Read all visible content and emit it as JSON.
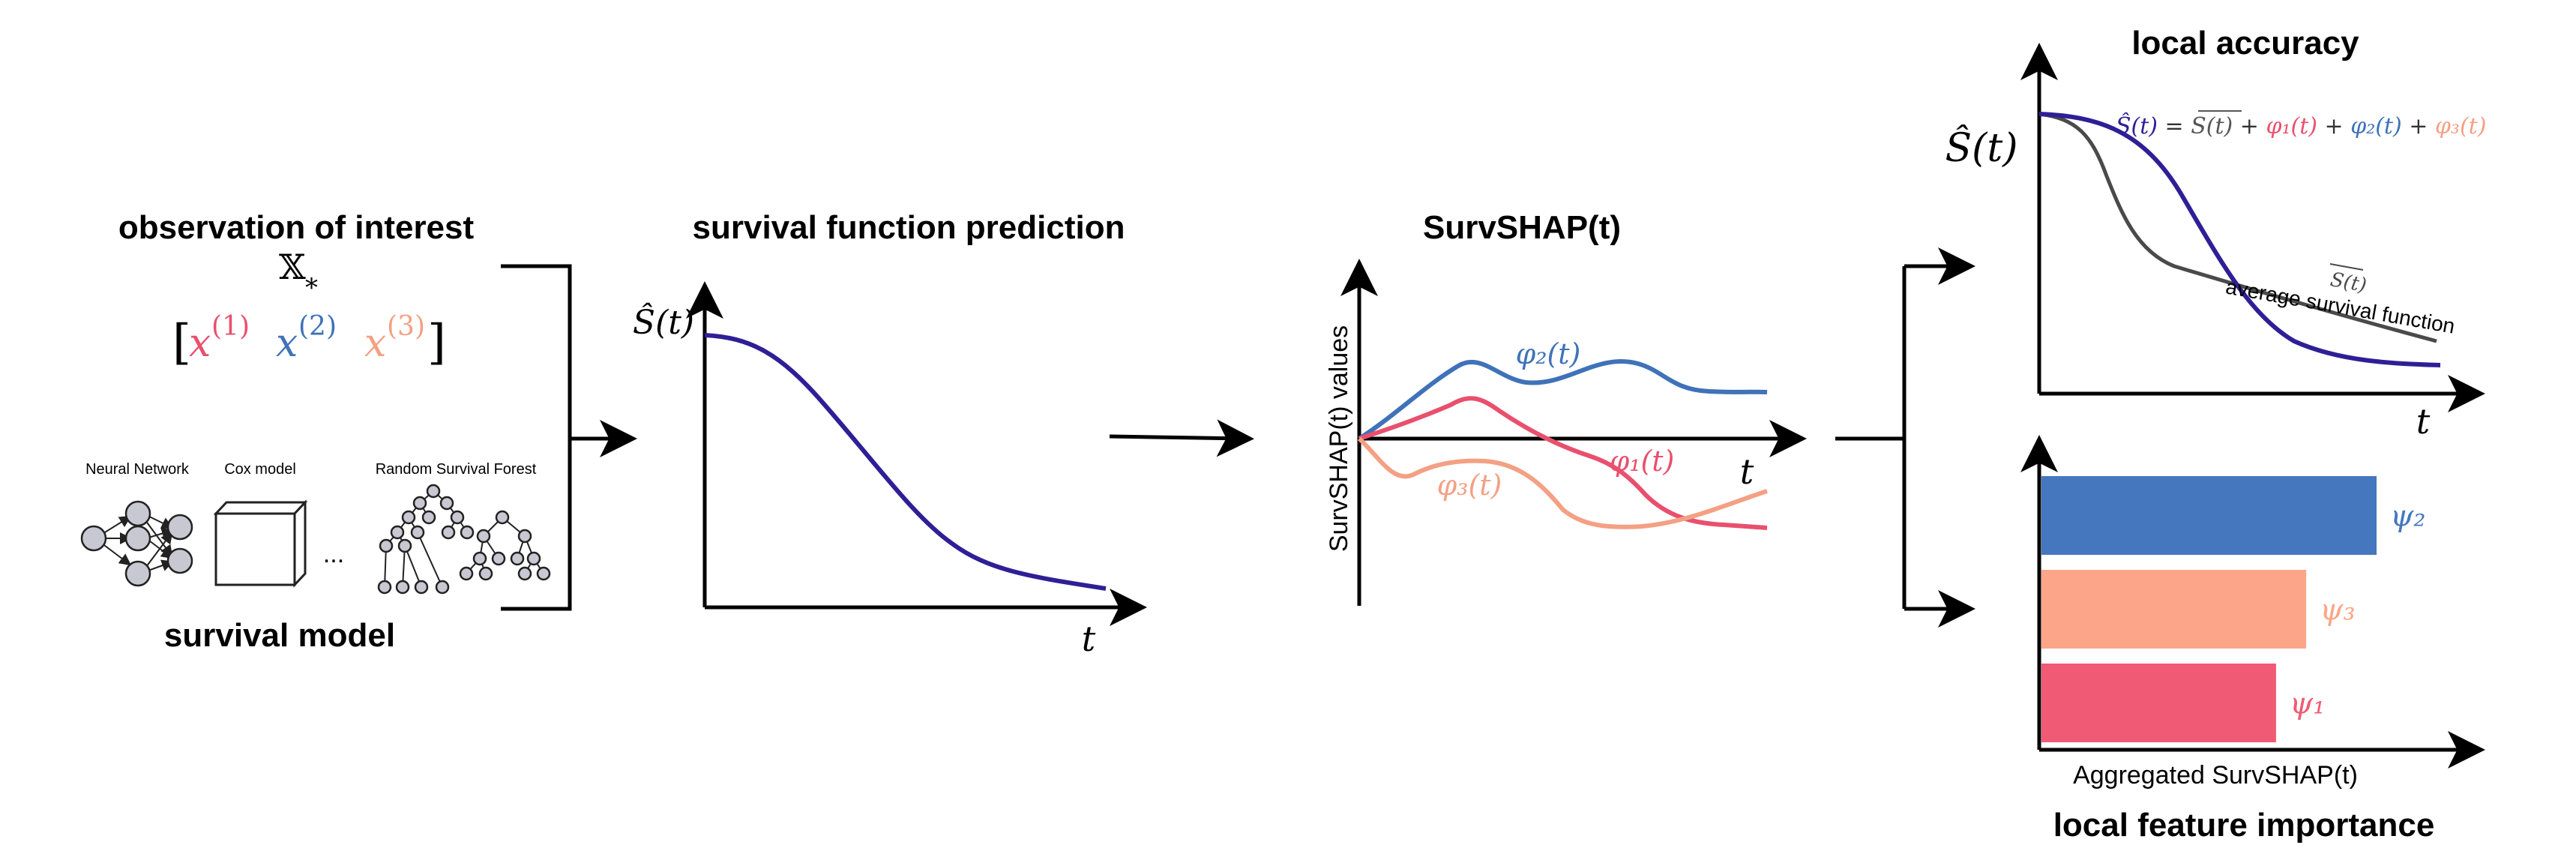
{
  "panel1": {
    "title": "observation of interest",
    "x_symbol": "𝕏",
    "x_subscript": "*",
    "features": [
      {
        "label": "x",
        "sup": "(1)",
        "color": "#e8506e"
      },
      {
        "label": "x",
        "sup": "(2)",
        "color": "#3f72b8"
      },
      {
        "label": "x",
        "sup": "(3)",
        "color": "#f4a084"
      }
    ],
    "models": [
      "Neural Network",
      "Cox model",
      "Random Survival Forest"
    ],
    "ellipsis": "...",
    "bottom_title": "survival model"
  },
  "panel2": {
    "title": "survival function prediction",
    "ylabel": "Ŝ(t)",
    "xlabel": "t",
    "curve_color": "#2e1f96"
  },
  "panel3": {
    "title": "SurvSHAP(t)",
    "ylabel": "SurvSHAP(t) values",
    "xlabel": "t",
    "series": [
      {
        "name": "φ₂(t)",
        "color": "#3f72b8"
      },
      {
        "name": "φ₁(t)",
        "color": "#e8506e"
      },
      {
        "name": "φ₃(t)",
        "color": "#f4a084"
      }
    ]
  },
  "panel4": {
    "title": "local accuracy",
    "ylabel": "Ŝ(t)",
    "xlabel": "t",
    "equation": {
      "lhs": "Ŝ(t)",
      "eq": " = ",
      "avg": "S(t)",
      "plus": " + ",
      "phi1": "φ₁(t)",
      "phi2": "φ₂(t)",
      "phi3": "φ₃(t)"
    },
    "avg_label": "S(t)",
    "avg_caption": "average survival function",
    "pred_color": "#2e1f96",
    "avg_color": "#4a4a4a"
  },
  "panel5": {
    "xlabel": "Aggregated SurvSHAP(t)",
    "bottom_title": "local feature importance",
    "bars": [
      {
        "label": "ψ₂",
        "value": 1.0,
        "color": "#4477be"
      },
      {
        "label": "ψ₃",
        "value": 0.79,
        "color": "#fca588"
      },
      {
        "label": "ψ₁",
        "value": 0.7,
        "color": "#f05a74"
      }
    ]
  }
}
